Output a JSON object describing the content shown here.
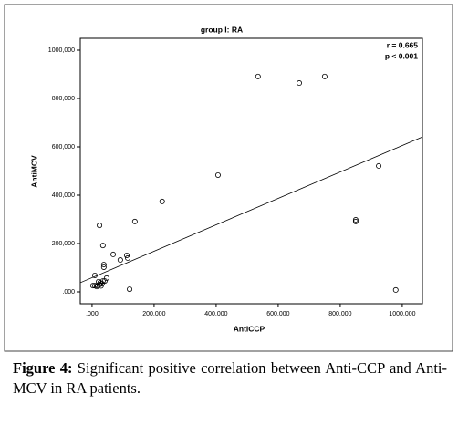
{
  "chart_data": {
    "type": "scatter",
    "title": "group I: RA",
    "x_label": "AntiCCP",
    "y_label": "AntiMCV",
    "annotations": [
      "r = 0.665",
      "p < 0.001"
    ],
    "x": [
      535000,
      668000,
      750000,
      406000,
      226000,
      924000,
      850000,
      850000,
      979000,
      138000,
      24000,
      35000,
      38000,
      38000,
      68000,
      112000,
      115000,
      91000,
      121000,
      9000,
      47000,
      41000,
      3000,
      9000,
      18000,
      24000,
      26000,
      32000,
      35000,
      21000,
      15000,
      29000
    ],
    "y": [
      891000,
      864000,
      891000,
      483000,
      374000,
      521000,
      298000,
      291000,
      8000,
      291000,
      275000,
      192000,
      113000,
      102000,
      155000,
      151000,
      140000,
      132000,
      11000,
      68000,
      57000,
      45000,
      26000,
      26000,
      26000,
      30000,
      38000,
      34000,
      45000,
      42000,
      22000,
      25000
    ],
    "color": "#000000",
    "trend_line": {
      "x": [
        -38000,
        1065000
      ],
      "y": [
        38000,
        641000
      ]
    },
    "xlim": [
      -38000,
      1065000
    ],
    "ylim": [
      -49000,
      1049000
    ],
    "xticks": [
      {
        "value": 0,
        "label": ".000"
      },
      {
        "value": 200000,
        "label": "200,000"
      },
      {
        "value": 400000,
        "label": "400,000"
      },
      {
        "value": 600000,
        "label": "600,000"
      },
      {
        "value": 800000,
        "label": "800,000"
      },
      {
        "value": 1000000,
        "label": "1000,000"
      }
    ],
    "yticks": [
      {
        "value": 0,
        "label": ".000"
      },
      {
        "value": 200000,
        "label": "200,000"
      },
      {
        "value": 400000,
        "label": "400,000"
      },
      {
        "value": 600000,
        "label": "600,000"
      },
      {
        "value": 800000,
        "label": "800,000"
      },
      {
        "value": 1000000,
        "label": "1000,000"
      }
    ]
  },
  "caption": {
    "label": "Figure 4:",
    "text": " Significant positive correlation between Anti-CCP and Anti-MCV in RA patients."
  }
}
